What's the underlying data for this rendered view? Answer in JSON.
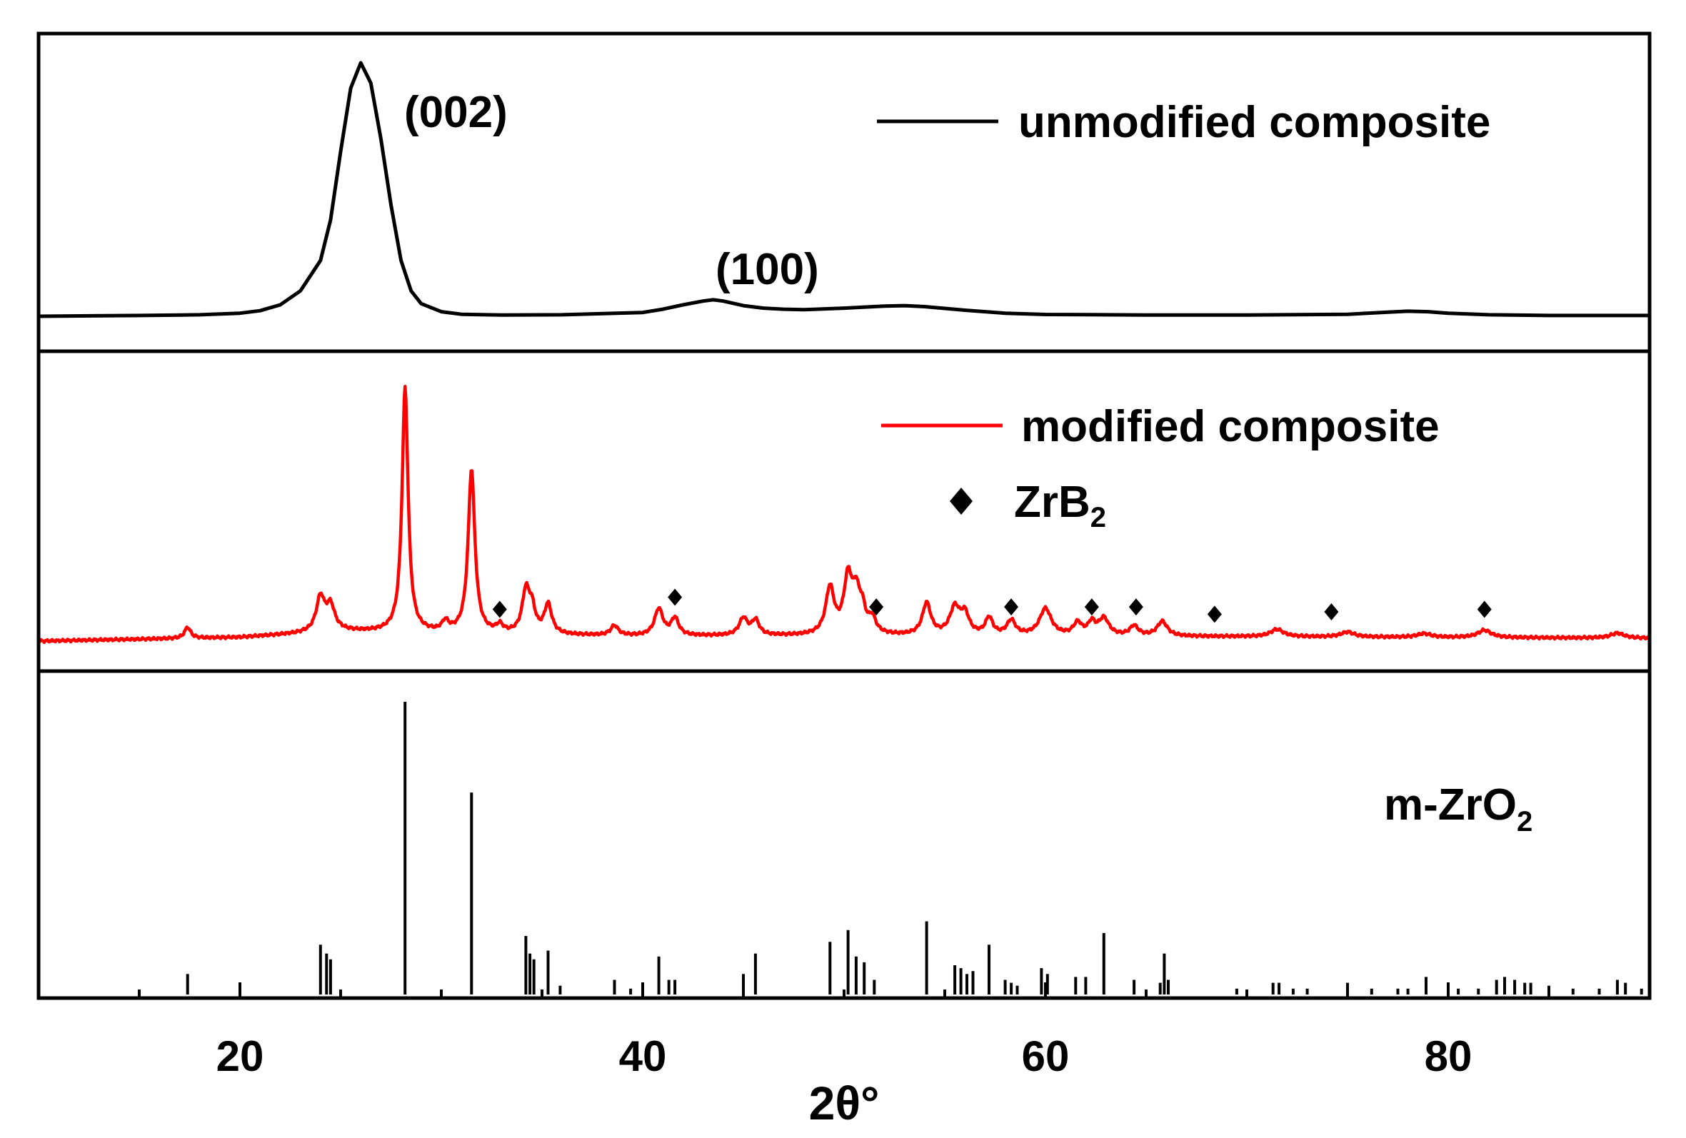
{
  "chart_data": {
    "type": "line",
    "xlabel": "2θ°",
    "xlim": [
      10,
      90
    ],
    "xticks": [
      20,
      40,
      60,
      80
    ],
    "grid": false,
    "panels": [
      {
        "id": "top",
        "legend": [
          {
            "label": "unmodified composite",
            "color": "#000000"
          }
        ],
        "annotations": [
          {
            "text": "(002)",
            "x": 25.8
          },
          {
            "text": "(100)",
            "x": 43.5
          }
        ],
        "series": [
          {
            "name": "unmodified composite",
            "color": "#000000",
            "x": [
              10,
              15,
              18,
              20,
              21,
              22,
              23,
              24,
              24.5,
              25,
              25.5,
              26,
              26.5,
              27,
              27.5,
              28,
              28.5,
              29,
              30,
              31,
              33,
              36,
              40,
              41,
              42,
              43,
              43.5,
              44,
              45,
              46,
              47,
              48,
              50,
              52,
              53,
              54,
              56,
              58,
              60,
              65,
              70,
              75,
              77,
              78,
              79,
              80,
              82,
              85,
              90
            ],
            "y": [
              0,
              0.3,
              0.6,
              1.2,
              2.2,
              4.5,
              10,
              22,
              38,
              65,
              90,
              100,
              92,
              70,
              44,
              22,
              10,
              5,
              1.8,
              0.8,
              0.5,
              0.6,
              1.5,
              2.8,
              4.5,
              6,
              6.5,
              6,
              4.2,
              3.2,
              2.8,
              2.6,
              3.2,
              4,
              4.2,
              3.8,
              2.4,
              1.2,
              0.7,
              0.5,
              0.5,
              0.8,
              1.6,
              2,
              1.8,
              1.2,
              0.6,
              0.3,
              0.3
            ]
          }
        ]
      },
      {
        "id": "middle",
        "legend": [
          {
            "label": "modified composite",
            "color": "#ff0000"
          },
          {
            "label": "ZrB",
            "sub": "2",
            "marker": "diamond"
          }
        ],
        "series": [
          {
            "name": "modified composite",
            "color": "#ff0000",
            "baseline": [
              [
                10,
                0
              ],
              [
                20,
                1.5
              ],
              [
                25,
                4
              ],
              [
                30,
                3
              ],
              [
                35,
                2.5
              ],
              [
                40,
                2
              ],
              [
                50,
                2.2
              ],
              [
                60,
                2
              ],
              [
                70,
                1.8
              ],
              [
                80,
                1.5
              ],
              [
                90,
                1.2
              ]
            ],
            "peaks": [
              [
                17.4,
                4.5,
                0.18
              ],
              [
                24.0,
                14,
                0.25
              ],
              [
                24.5,
                10,
                0.25
              ],
              [
                28.2,
                100,
                0.18
              ],
              [
                30.2,
                4,
                0.2
              ],
              [
                31.5,
                67,
                0.2
              ],
              [
                32.9,
                3,
                0.2
              ],
              [
                34.2,
                17,
                0.22
              ],
              [
                34.5,
                9,
                0.2
              ],
              [
                35.3,
                12,
                0.22
              ],
              [
                38.6,
                4,
                0.22
              ],
              [
                40.8,
                11,
                0.25
              ],
              [
                41.6,
                7,
                0.22
              ],
              [
                45.0,
                7,
                0.25
              ],
              [
                45.6,
                6,
                0.22
              ],
              [
                49.3,
                19,
                0.25
              ],
              [
                50.2,
                23,
                0.25
              ],
              [
                50.6,
                14,
                0.2
              ],
              [
                50.9,
                9,
                0.2
              ],
              [
                51.4,
                6,
                0.22
              ],
              [
                54.1,
                13,
                0.25
              ],
              [
                55.5,
                11,
                0.3
              ],
              [
                56.0,
                8,
                0.25
              ],
              [
                57.2,
                7,
                0.22
              ],
              [
                58.3,
                6,
                0.25
              ],
              [
                60.0,
                11,
                0.35
              ],
              [
                61.6,
                5,
                0.25
              ],
              [
                62.3,
                5,
                0.22
              ],
              [
                62.9,
                7,
                0.3
              ],
              [
                64.4,
                4,
                0.25
              ],
              [
                65.8,
                6,
                0.3
              ],
              [
                71.5,
                3,
                0.4
              ],
              [
                75.0,
                2,
                0.4
              ],
              [
                78.8,
                1.5,
                0.4
              ],
              [
                81.8,
                3,
                0.4
              ],
              [
                88.4,
                2,
                0.4
              ]
            ]
          }
        ],
        "markers_zrb2": [
          {
            "x": 32.9,
            "y": 13
          },
          {
            "x": 41.6,
            "y": 18
          },
          {
            "x": 51.6,
            "y": 14
          },
          {
            "x": 58.3,
            "y": 14
          },
          {
            "x": 62.3,
            "y": 14
          },
          {
            "x": 64.5,
            "y": 14
          },
          {
            "x": 68.4,
            "y": 11
          },
          {
            "x": 74.2,
            "y": 12
          },
          {
            "x": 81.8,
            "y": 13
          }
        ]
      },
      {
        "id": "bottom",
        "label": {
          "text": "m-ZrO",
          "sub": "2"
        },
        "sticks": [
          [
            17.4,
            7
          ],
          [
            24.0,
            17
          ],
          [
            24.3,
            14
          ],
          [
            24.5,
            12
          ],
          [
            28.2,
            100
          ],
          [
            31.5,
            69
          ],
          [
            34.2,
            20
          ],
          [
            34.4,
            14
          ],
          [
            34.6,
            12
          ],
          [
            35.3,
            15
          ],
          [
            35.9,
            3
          ],
          [
            38.6,
            5
          ],
          [
            39.4,
            2
          ],
          [
            40.8,
            13
          ],
          [
            41.3,
            5
          ],
          [
            41.6,
            5
          ],
          [
            45.0,
            7
          ],
          [
            45.6,
            14
          ],
          [
            49.3,
            18
          ],
          [
            50.2,
            22
          ],
          [
            50.6,
            13
          ],
          [
            51.0,
            11
          ],
          [
            51.5,
            5
          ],
          [
            54.1,
            25
          ],
          [
            55.5,
            10
          ],
          [
            55.8,
            9
          ],
          [
            56.1,
            7
          ],
          [
            56.4,
            8
          ],
          [
            57.2,
            17
          ],
          [
            58.0,
            5
          ],
          [
            58.3,
            4
          ],
          [
            58.6,
            3
          ],
          [
            59.8,
            9
          ],
          [
            60.1,
            7
          ],
          [
            61.5,
            6
          ],
          [
            62.0,
            6
          ],
          [
            62.9,
            21
          ],
          [
            64.4,
            5
          ],
          [
            65.7,
            4
          ],
          [
            65.9,
            14
          ],
          [
            66.1,
            5
          ],
          [
            69.5,
            2
          ],
          [
            71.3,
            4
          ],
          [
            71.6,
            4
          ],
          [
            72.3,
            2
          ],
          [
            73.0,
            2
          ],
          [
            75.0,
            4
          ],
          [
            76.2,
            2
          ],
          [
            77.5,
            2
          ],
          [
            78.0,
            2
          ],
          [
            78.9,
            6
          ],
          [
            80.5,
            2
          ],
          [
            81.5,
            2
          ],
          [
            82.4,
            5
          ],
          [
            82.8,
            6
          ],
          [
            83.3,
            5
          ],
          [
            83.8,
            4
          ],
          [
            84.1,
            4
          ],
          [
            85.0,
            3
          ],
          [
            86.2,
            2
          ],
          [
            87.5,
            2
          ],
          [
            88.4,
            5
          ],
          [
            88.8,
            4
          ],
          [
            89.6,
            2
          ]
        ]
      }
    ]
  }
}
